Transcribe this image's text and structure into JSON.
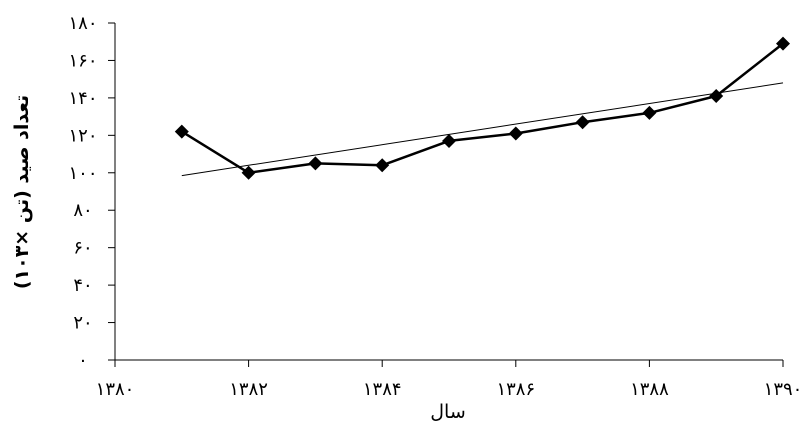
{
  "chart_data": {
    "type": "line",
    "xlabel": "سال",
    "ylabel": "تعداد صید (تن ×۱۰۳)",
    "xlim": [
      1380,
      1390
    ],
    "ylim": [
      0,
      180
    ],
    "x_ticks": [
      1380,
      1382,
      1384,
      1386,
      1388,
      1390
    ],
    "x_tick_labels": [
      "۱۳۸۰",
      "۱۳۸۲",
      "۱۳۸۴",
      "۱۳۸۶",
      "۱۳۸۸",
      "۱۳۹۰"
    ],
    "y_ticks": [
      0,
      20,
      40,
      60,
      80,
      100,
      120,
      140,
      160,
      180
    ],
    "y_tick_labels": [
      "۰",
      "۲۰",
      "۴۰",
      "۶۰",
      "۸۰",
      "۱۰۰",
      "۱۲۰",
      "۱۴۰",
      "۱۶۰",
      "۱۸۰"
    ],
    "grid": false,
    "legend": false,
    "series": [
      {
        "x": [
          1381,
          1382,
          1383,
          1384,
          1385,
          1386,
          1387,
          1388,
          1389,
          1390
        ],
        "values": [
          122,
          100,
          105,
          104,
          117,
          121,
          127,
          132,
          141,
          169
        ],
        "marker": "diamond",
        "color": "#000000"
      }
    ],
    "trendline": {
      "x": [
        1381,
        1390
      ],
      "values": [
        98.5,
        148
      ]
    }
  }
}
